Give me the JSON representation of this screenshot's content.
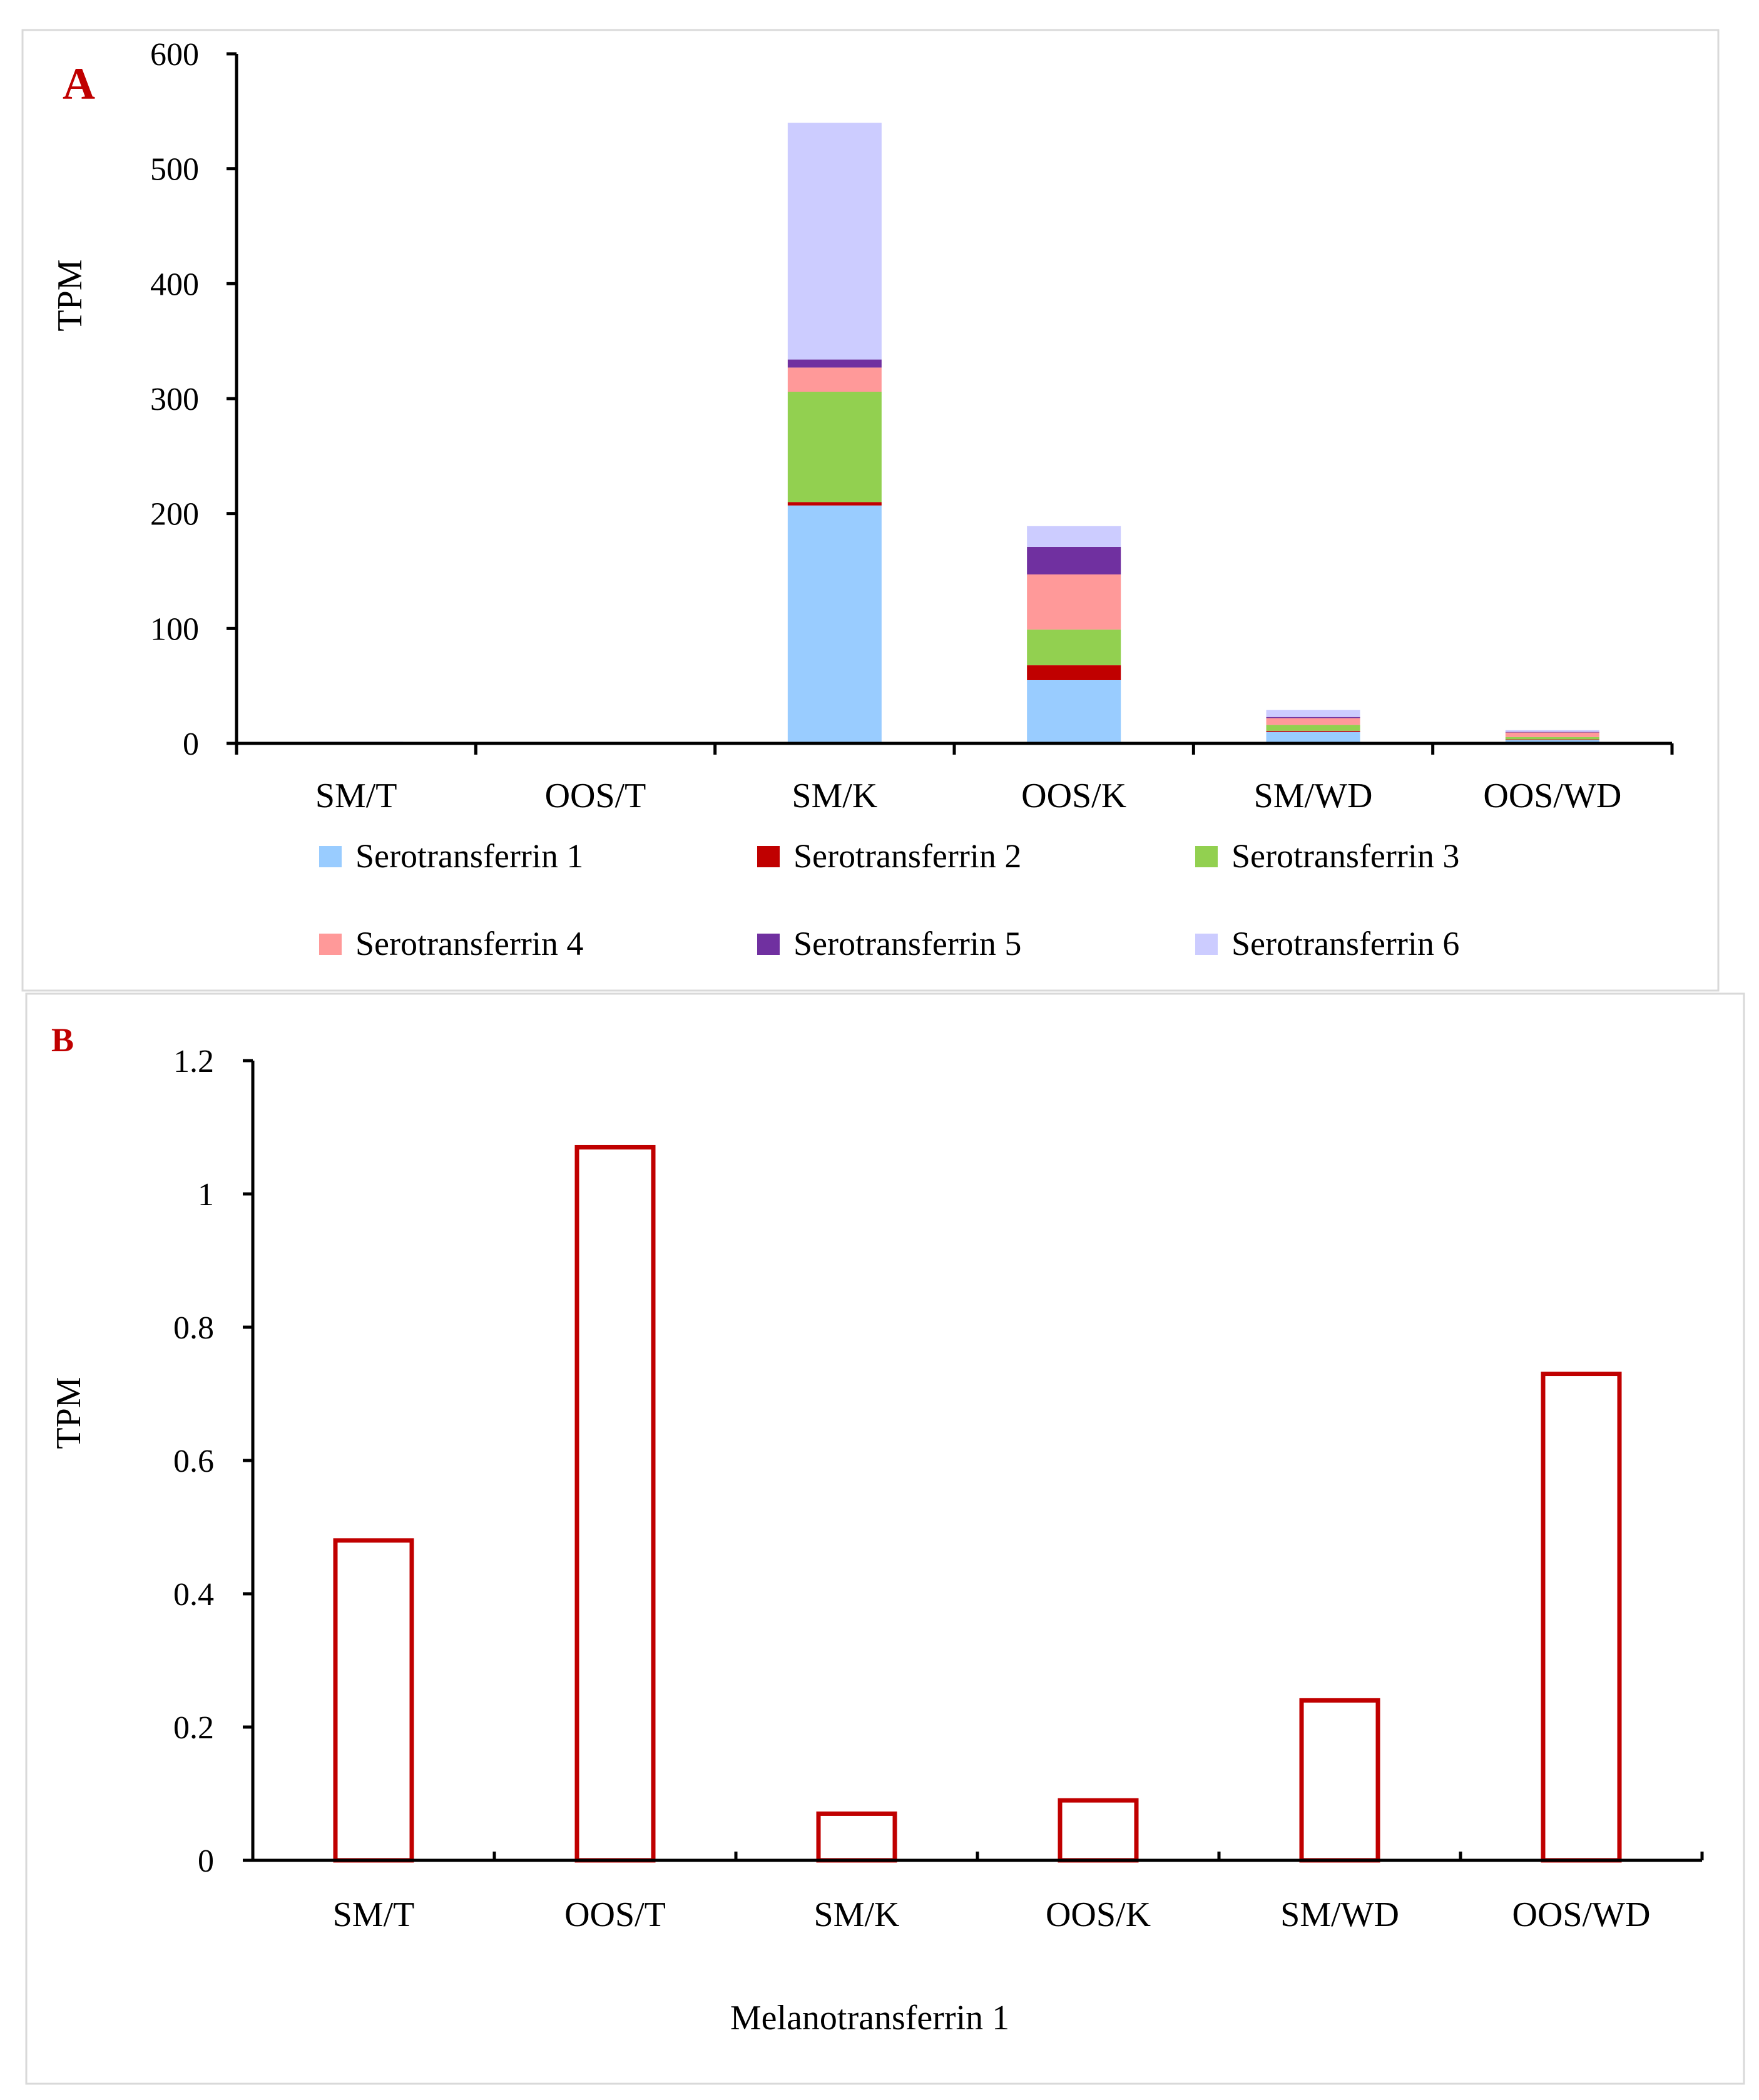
{
  "chart_data": [
    {
      "panel": "A",
      "type": "bar",
      "stacked": true,
      "title": "",
      "xlabel": "",
      "ylabel": "TPM",
      "ylim": [
        0,
        600
      ],
      "yticks": [
        0,
        100,
        200,
        300,
        400,
        500,
        600
      ],
      "categories": [
        "SM/T",
        "OOS/T",
        "SM/K",
        "OOS/K",
        "SM/WD",
        "OOS/WD"
      ],
      "series": [
        {
          "name": "Serotransferrin 1",
          "color": "#99ccff",
          "values": [
            0.5,
            0.3,
            207,
            55,
            10,
            3
          ]
        },
        {
          "name": "Serotransferrin 2",
          "color": "#c00000",
          "values": [
            0.1,
            0.1,
            3,
            13,
            1,
            0.5
          ]
        },
        {
          "name": "Serotransferrin 3",
          "color": "#92d050",
          "values": [
            0.1,
            0.1,
            96,
            31,
            5,
            2
          ]
        },
        {
          "name": "Serotransferrin 4",
          "color": "#ff9999",
          "values": [
            0.1,
            0.1,
            21,
            48,
            6,
            4
          ]
        },
        {
          "name": "Serotransferrin 5",
          "color": "#7030a0",
          "values": [
            0.5,
            0.5,
            7,
            24,
            1,
            0.5
          ]
        },
        {
          "name": "Serotransferrin 6",
          "color": "#ccccff",
          "values": [
            0.2,
            0.2,
            206,
            18,
            6,
            1.5
          ]
        }
      ],
      "legend_position": "bottom"
    },
    {
      "panel": "B",
      "type": "bar",
      "stacked": false,
      "title": "",
      "xlabel": "Melanotransferrin 1",
      "ylabel": "TPM",
      "ylim": [
        0,
        1.2
      ],
      "yticks": [
        "0",
        "0.2",
        "0.4",
        "0.6",
        "0.8",
        "1",
        "1.2"
      ],
      "categories": [
        "SM/T",
        "OOS/T",
        "SM/K",
        "OOS/K",
        "SM/WD",
        "OOS/WD"
      ],
      "values": [
        0.48,
        1.07,
        0.07,
        0.09,
        0.24,
        0.73
      ],
      "bar_fill": "none",
      "bar_stroke": "#c00000"
    }
  ]
}
